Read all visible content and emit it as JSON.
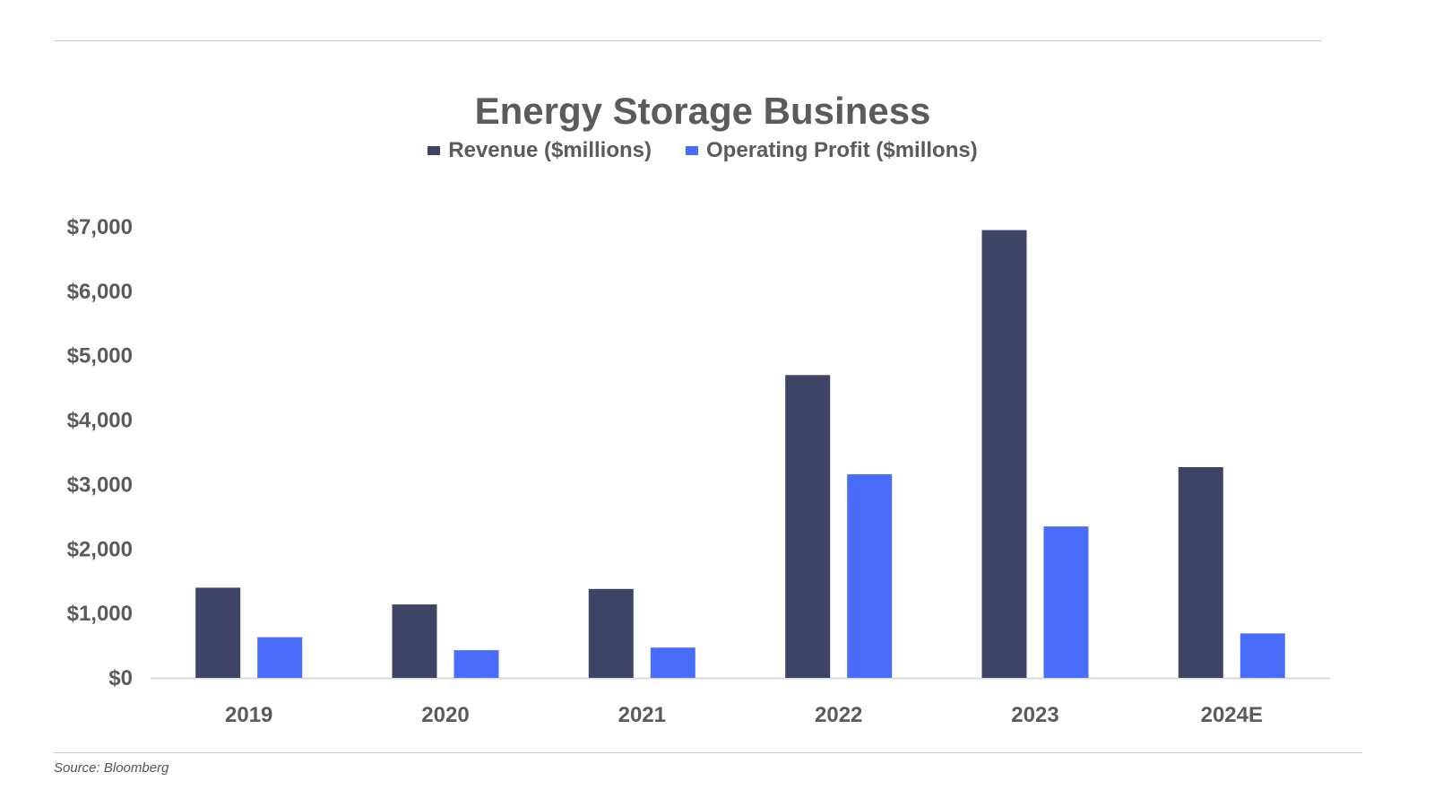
{
  "chart_data": {
    "type": "bar",
    "title": "Energy Storage Business",
    "categories": [
      "2019",
      "2020",
      "2021",
      "2022",
      "2023",
      "2024E"
    ],
    "series": [
      {
        "name": "Revenue ($millions)",
        "color": "#3d4466",
        "values": [
          1400,
          1140,
          1380,
          4700,
          6950,
          3270
        ]
      },
      {
        "name": "Operating Profit ($millons)",
        "color": "#4a6cfb",
        "values": [
          630,
          430,
          470,
          3160,
          2350,
          690
        ]
      }
    ],
    "ylim": [
      0,
      7000
    ],
    "yticks": [
      0,
      1000,
      2000,
      3000,
      4000,
      5000,
      6000,
      7000
    ],
    "ytick_labels": [
      "$0",
      "$1,000",
      "$2,000",
      "$3,000",
      "$4,000",
      "$5,000",
      "$6,000",
      "$7,000"
    ],
    "xlabel": "",
    "ylabel": "",
    "grid": false,
    "legend_position": "top-center"
  },
  "source": "Source: Bloomberg"
}
